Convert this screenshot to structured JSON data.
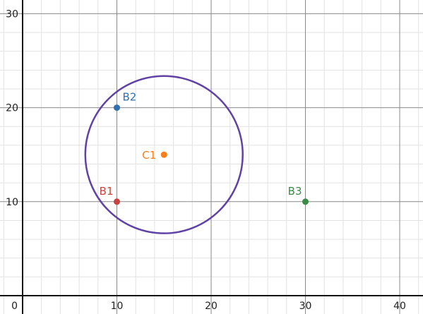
{
  "chart_data": {
    "type": "scatter",
    "title": "",
    "xlabel": "",
    "ylabel": "",
    "xlim": [
      0,
      42
    ],
    "ylim": [
      0,
      30.5
    ],
    "grid": true,
    "minor_grid_step": 2,
    "major_grid_step": 10,
    "x_ticks": [
      {
        "value": 0,
        "label": "0"
      },
      {
        "value": 10,
        "label": "10"
      },
      {
        "value": 20,
        "label": "20"
      },
      {
        "value": 30,
        "label": "30"
      },
      {
        "value": 40,
        "label": "40"
      }
    ],
    "y_ticks": [
      {
        "value": 10,
        "label": "10"
      },
      {
        "value": 20,
        "label": "20"
      },
      {
        "value": 30,
        "label": "30"
      }
    ],
    "points": [
      {
        "name": "B1",
        "x": 10,
        "y": 10,
        "color": "#c74440",
        "label_side": "above-left"
      },
      {
        "name": "B2",
        "x": 10,
        "y": 20,
        "color": "#2d70b3",
        "label_side": "above-right"
      },
      {
        "name": "C1",
        "x": 15,
        "y": 15,
        "color": "#fa7e19",
        "label_side": "left"
      },
      {
        "name": "B3",
        "x": 30,
        "y": 10,
        "color": "#388c46",
        "label_side": "above-left"
      }
    ],
    "circles": [
      {
        "cx": 15,
        "cy": 15,
        "r": 8.35,
        "color": "#6042a6"
      }
    ]
  }
}
